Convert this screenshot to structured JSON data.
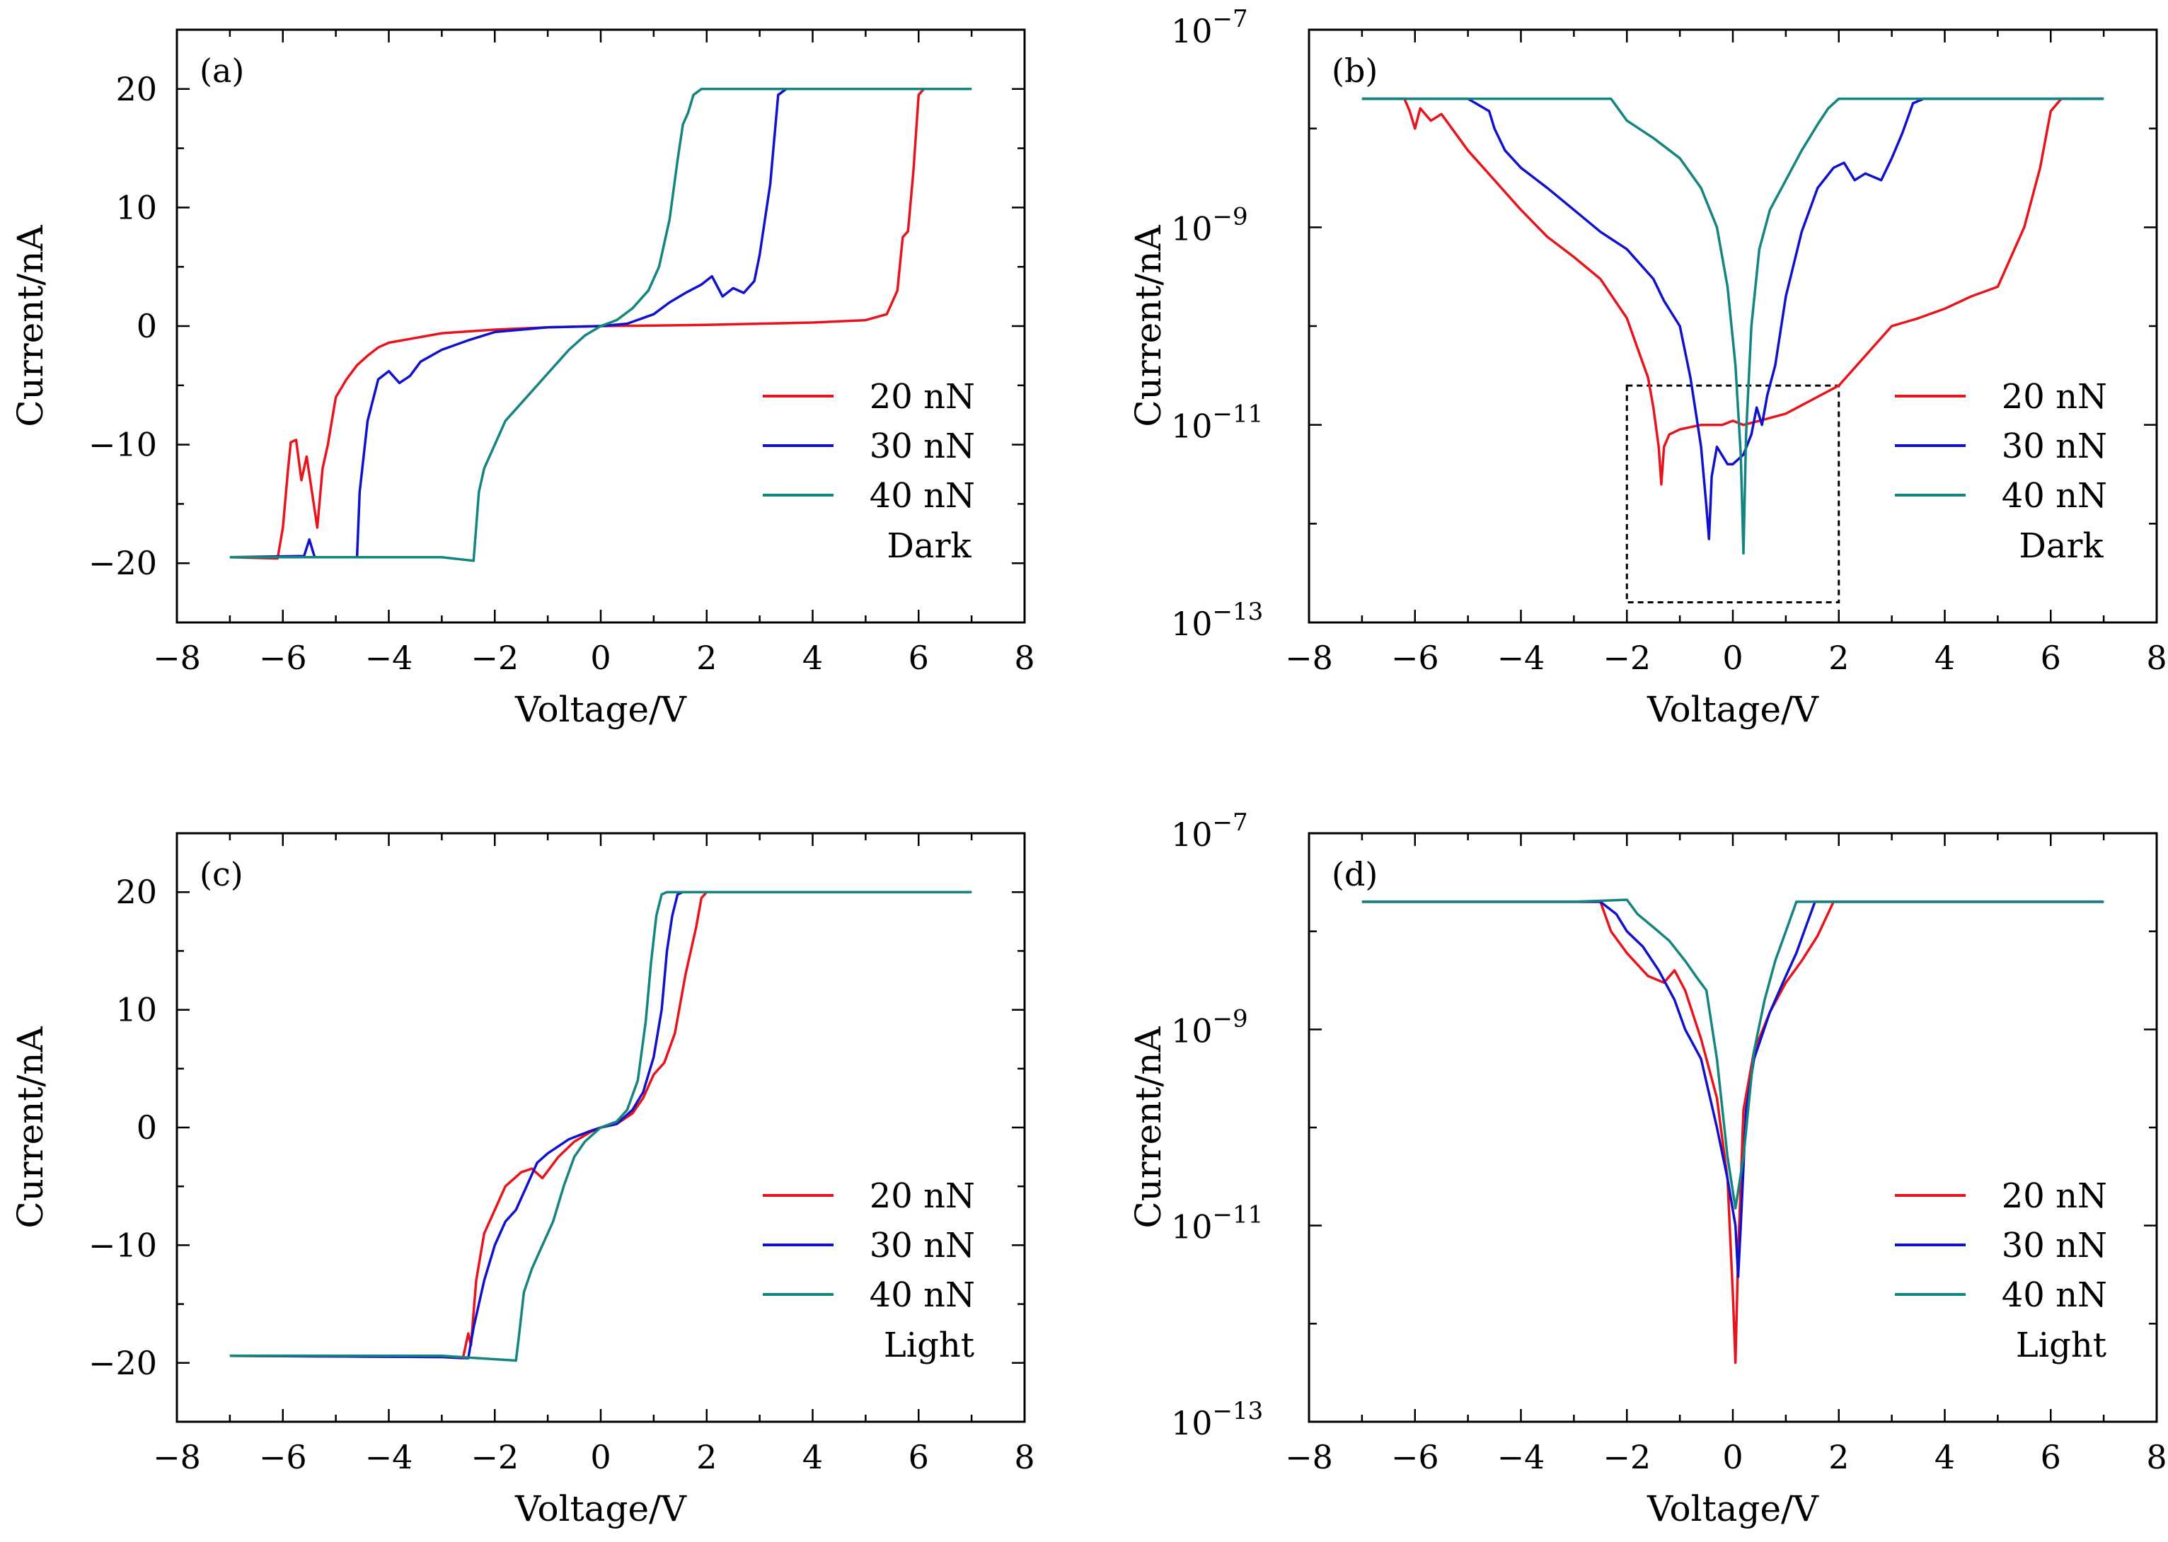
{
  "colors": {
    "20 nN": "#e8141c",
    "30 nN": "#1111cc",
    "40 nN": "#14857e"
  },
  "chart_data": [
    {
      "id": "a",
      "type": "line",
      "panel_label": "(a)",
      "xlabel": "Voltage/V",
      "ylabel": "Current/nA",
      "xlim": [
        -8,
        8
      ],
      "ylim": [
        -25,
        25
      ],
      "xticks": [
        -8,
        -6,
        -4,
        -2,
        0,
        2,
        4,
        6,
        8
      ],
      "xtick_labels": [
        "−8",
        "−6",
        "−4",
        "−2",
        "0",
        "2",
        "4",
        "6",
        "8"
      ],
      "yticks": [
        -20,
        -10,
        0,
        10,
        20
      ],
      "ytick_labels": [
        "−20",
        "−10",
        "0",
        "10",
        "20"
      ],
      "yscale": "linear",
      "legend_title": "Dark",
      "legend_position": "lower-right",
      "series": [
        {
          "name": "20 nN",
          "x": [
            -7.0,
            -6.1,
            -6.0,
            -5.9,
            -5.85,
            -5.75,
            -5.65,
            -5.55,
            -5.45,
            -5.35,
            -5.25,
            -5.15,
            -5.0,
            -4.8,
            -4.6,
            -4.4,
            -4.2,
            -4.0,
            -3.5,
            -3.0,
            -2.0,
            -1.0,
            0.0,
            1.0,
            2.0,
            3.0,
            4.0,
            5.0,
            5.4,
            5.6,
            5.7,
            5.8,
            5.9,
            6.0,
            6.1,
            6.2,
            7.0
          ],
          "y": [
            -19.5,
            -19.6,
            -17,
            -12,
            -9.8,
            -9.6,
            -13,
            -11,
            -14,
            -17,
            -12,
            -10,
            -6,
            -4.5,
            -3.3,
            -2.5,
            -1.8,
            -1.4,
            -1.0,
            -0.6,
            -0.3,
            -0.1,
            0.0,
            0.05,
            0.1,
            0.2,
            0.3,
            0.5,
            1.0,
            3.0,
            7.5,
            8.0,
            13,
            19.5,
            20,
            20,
            20
          ]
        },
        {
          "name": "30 nN",
          "x": [
            -7.0,
            -5.6,
            -5.5,
            -5.4,
            -4.6,
            -4.55,
            -4.4,
            -4.2,
            -4.0,
            -3.8,
            -3.6,
            -3.4,
            -3.0,
            -2.5,
            -2.0,
            -1.0,
            0.0,
            0.5,
            1.0,
            1.3,
            1.6,
            1.9,
            2.1,
            2.3,
            2.5,
            2.7,
            2.9,
            3.0,
            3.2,
            3.35,
            3.5,
            4.0,
            7.0
          ],
          "y": [
            -19.5,
            -19.4,
            -18,
            -19.5,
            -19.5,
            -14,
            -8,
            -4.5,
            -3.8,
            -4.8,
            -4.2,
            -3.0,
            -2.0,
            -1.2,
            -0.5,
            -0.1,
            0.0,
            0.2,
            1.0,
            2.0,
            2.8,
            3.5,
            4.2,
            2.5,
            3.2,
            2.8,
            3.8,
            6.0,
            12,
            19.5,
            20,
            20,
            20
          ]
        },
        {
          "name": "40 nN",
          "x": [
            -7.0,
            -3.0,
            -2.4,
            -2.3,
            -2.2,
            -2.0,
            -1.8,
            -1.6,
            -1.4,
            -1.0,
            -0.6,
            -0.3,
            0.0,
            0.3,
            0.6,
            0.9,
            1.1,
            1.3,
            1.45,
            1.55,
            1.65,
            1.75,
            1.9,
            2.0,
            2.5,
            7.0
          ],
          "y": [
            -19.5,
            -19.5,
            -19.8,
            -14,
            -12,
            -10,
            -8,
            -7,
            -6,
            -4,
            -2,
            -0.8,
            0.0,
            0.5,
            1.5,
            3.0,
            5.0,
            9.0,
            14,
            17,
            18,
            19.5,
            20,
            20,
            20,
            20
          ]
        }
      ]
    },
    {
      "id": "b",
      "type": "line",
      "panel_label": "(b)",
      "xlabel": "Voltage/V",
      "ylabel": "Current/nA",
      "xlim": [
        -8,
        8
      ],
      "ylim": [
        1e-13,
        1e-07
      ],
      "xticks": [
        -8,
        -6,
        -4,
        -2,
        0,
        2,
        4,
        6,
        8
      ],
      "xtick_labels": [
        "−8",
        "−6",
        "−4",
        "−2",
        "0",
        "2",
        "4",
        "6",
        "8"
      ],
      "yticks": [
        1e-13,
        1e-11,
        1e-09,
        1e-07
      ],
      "ytick_labels": [
        "10",
        "10",
        "10",
        "10"
      ],
      "ytick_exponents": [
        "−13",
        "−11",
        "−9",
        "−7"
      ],
      "yscale": "log",
      "legend_title": "Dark",
      "legend_position": "lower-right",
      "inset_box": {
        "x": [
          -2,
          2
        ],
        "y": [
          1.6e-13,
          2.5e-11
        ]
      },
      "series": [
        {
          "name": "20 nN",
          "x": [
            -7.0,
            -6.2,
            -6.1,
            -6.0,
            -5.9,
            -5.7,
            -5.5,
            -5.0,
            -4.5,
            -4.0,
            -3.5,
            -3.0,
            -2.5,
            -2.0,
            -1.8,
            -1.6,
            -1.5,
            -1.4,
            -1.35,
            -1.3,
            -1.2,
            -1.0,
            -0.6,
            -0.2,
            0.0,
            0.2,
            0.5,
            1.0,
            1.5,
            2.0,
            2.5,
            3.0,
            3.5,
            4.0,
            4.5,
            5.0,
            5.5,
            5.8,
            6.0,
            6.2,
            7.0
          ],
          "y": [
            2e-08,
            2e-08,
            1.5e-08,
            1e-08,
            1.6e-08,
            1.2e-08,
            1.4e-08,
            6e-09,
            3e-09,
            1.5e-09,
            8e-10,
            5e-10,
            3e-10,
            1.2e-10,
            6e-11,
            3e-11,
            1.5e-11,
            6e-12,
            2.5e-12,
            6e-12,
            8e-12,
            9e-12,
            1e-11,
            1e-11,
            1.1e-11,
            1e-11,
            1.1e-11,
            1.3e-11,
            1.8e-11,
            2.5e-11,
            5e-11,
            1e-10,
            1.2e-10,
            1.5e-10,
            2e-10,
            2.5e-10,
            1e-09,
            4e-09,
            1.5e-08,
            2e-08,
            2e-08
          ]
        },
        {
          "name": "30 nN",
          "x": [
            -7.0,
            -5.0,
            -4.6,
            -4.5,
            -4.3,
            -4.0,
            -3.5,
            -3.0,
            -2.5,
            -2.0,
            -1.5,
            -1.3,
            -1.0,
            -0.8,
            -0.6,
            -0.5,
            -0.45,
            -0.4,
            -0.3,
            -0.1,
            0.0,
            0.2,
            0.35,
            0.45,
            0.55,
            0.65,
            0.8,
            1.0,
            1.3,
            1.6,
            1.9,
            2.1,
            2.3,
            2.5,
            2.8,
            3.0,
            3.2,
            3.4,
            3.6,
            7.0
          ],
          "y": [
            2e-08,
            2e-08,
            1.5e-08,
            1e-08,
            6e-09,
            4e-09,
            2.5e-09,
            1.5e-09,
            9e-10,
            6e-10,
            3e-10,
            1.8e-10,
            1e-10,
            3e-11,
            6e-12,
            1.5e-12,
            7e-13,
            3e-12,
            6e-12,
            4e-12,
            4e-12,
            5e-12,
            8e-12,
            1.5e-11,
            1e-11,
            2e-11,
            4e-11,
            2e-10,
            9e-10,
            2.5e-09,
            4e-09,
            4.5e-09,
            3e-09,
            3.5e-09,
            3e-09,
            5e-09,
            9e-09,
            1.8e-08,
            2e-08,
            2e-08
          ]
        },
        {
          "name": "40 nN",
          "x": [
            -7.0,
            -3.0,
            -2.3,
            -2.0,
            -1.5,
            -1.0,
            -0.6,
            -0.3,
            -0.1,
            0.05,
            0.15,
            0.2,
            0.25,
            0.35,
            0.5,
            0.7,
            1.0,
            1.3,
            1.6,
            1.8,
            2.0,
            2.2,
            7.0
          ],
          "y": [
            2e-08,
            2e-08,
            2e-08,
            1.2e-08,
            8e-09,
            5e-09,
            2.5e-09,
            1e-09,
            2.5e-10,
            4e-11,
            5e-12,
            5e-13,
            8e-12,
            1e-10,
            6e-10,
            1.5e-09,
            3e-09,
            6e-09,
            1.1e-08,
            1.6e-08,
            2e-08,
            2e-08,
            2e-08
          ]
        }
      ]
    },
    {
      "id": "c",
      "type": "line",
      "panel_label": "(c)",
      "xlabel": "Voltage/V",
      "ylabel": "Current/nA",
      "xlim": [
        -8,
        8
      ],
      "ylim": [
        -25,
        25
      ],
      "xticks": [
        -8,
        -6,
        -4,
        -2,
        0,
        2,
        4,
        6,
        8
      ],
      "xtick_labels": [
        "−8",
        "−6",
        "−4",
        "−2",
        "0",
        "2",
        "4",
        "6",
        "8"
      ],
      "yticks": [
        -20,
        -10,
        0,
        10,
        20
      ],
      "ytick_labels": [
        "−20",
        "−10",
        "0",
        "10",
        "20"
      ],
      "yscale": "linear",
      "legend_title": "Light",
      "legend_position": "lower-right",
      "series": [
        {
          "name": "20 nN",
          "x": [
            -7.0,
            -3.0,
            -2.6,
            -2.5,
            -2.45,
            -2.35,
            -2.2,
            -2.0,
            -1.8,
            -1.5,
            -1.3,
            -1.1,
            -0.8,
            -0.5,
            -0.2,
            0.0,
            0.3,
            0.6,
            0.8,
            1.0,
            1.2,
            1.4,
            1.6,
            1.8,
            1.9,
            2.0,
            7.0
          ],
          "y": [
            -19.4,
            -19.5,
            -19.6,
            -17.5,
            -18.5,
            -13,
            -9,
            -7,
            -5,
            -3.8,
            -3.5,
            -4.3,
            -2.5,
            -1.2,
            -0.4,
            0.0,
            0.3,
            1.2,
            2.5,
            4.5,
            5.5,
            8.0,
            13,
            17,
            19.5,
            20,
            20
          ]
        },
        {
          "name": "30 nN",
          "x": [
            -7.0,
            -3.0,
            -2.5,
            -2.4,
            -2.2,
            -2.0,
            -1.8,
            -1.6,
            -1.4,
            -1.2,
            -1.0,
            -0.6,
            -0.2,
            0.0,
            0.3,
            0.6,
            0.8,
            1.0,
            1.15,
            1.25,
            1.35,
            1.45,
            1.55,
            7.0
          ],
          "y": [
            -19.4,
            -19.5,
            -19.6,
            -17,
            -13,
            -10,
            -8,
            -7,
            -5,
            -3.0,
            -2.2,
            -1.0,
            -0.3,
            0.0,
            0.3,
            1.5,
            3.0,
            6.0,
            10,
            15,
            18,
            19.8,
            20,
            20
          ]
        },
        {
          "name": "40 nN",
          "x": [
            -7.0,
            -3.0,
            -1.6,
            -1.55,
            -1.45,
            -1.3,
            -1.1,
            -0.9,
            -0.7,
            -0.5,
            -0.3,
            0.0,
            0.3,
            0.5,
            0.7,
            0.85,
            0.95,
            1.05,
            1.15,
            1.25,
            7.0
          ],
          "y": [
            -19.4,
            -19.4,
            -19.8,
            -18,
            -14,
            -12,
            -10,
            -8,
            -5,
            -2.5,
            -1.2,
            0.0,
            0.5,
            1.5,
            4.0,
            9.0,
            14,
            18,
            19.8,
            20,
            20
          ]
        }
      ]
    },
    {
      "id": "d",
      "type": "line",
      "panel_label": "(d)",
      "xlabel": "Voltage/V",
      "ylabel": "Current/nA",
      "xlim": [
        -8,
        8
      ],
      "ylim": [
        1e-13,
        1e-07
      ],
      "xticks": [
        -8,
        -6,
        -4,
        -2,
        0,
        2,
        4,
        6,
        8
      ],
      "xtick_labels": [
        "−8",
        "−6",
        "−4",
        "−2",
        "0",
        "2",
        "4",
        "6",
        "8"
      ],
      "yticks": [
        1e-13,
        1e-11,
        1e-09,
        1e-07
      ],
      "ytick_labels": [
        "10",
        "10",
        "10",
        "10"
      ],
      "ytick_exponents": [
        "−13",
        "−11",
        "−9",
        "−7"
      ],
      "yscale": "log",
      "legend_title": "Light",
      "legend_position": "lower-right",
      "series": [
        {
          "name": "20 nN",
          "x": [
            -7.0,
            -3.0,
            -2.5,
            -2.3,
            -2.0,
            -1.6,
            -1.3,
            -1.1,
            -0.9,
            -0.6,
            -0.3,
            -0.1,
            0.0,
            0.05,
            0.1,
            0.2,
            0.4,
            0.7,
            1.0,
            1.3,
            1.6,
            1.9,
            7.0
          ],
          "y": [
            2e-08,
            2e-08,
            2e-08,
            1e-08,
            6e-09,
            3.5e-09,
            3e-09,
            4e-09,
            2.5e-09,
            8e-10,
            2e-10,
            3e-11,
            2e-12,
            4e-13,
            5e-12,
            1.5e-10,
            6e-10,
            1.5e-09,
            3e-09,
            5e-09,
            9e-09,
            2e-08,
            2e-08
          ]
        },
        {
          "name": "30 nN",
          "x": [
            -7.0,
            -3.0,
            -2.5,
            -2.2,
            -2.0,
            -1.7,
            -1.4,
            -1.1,
            -0.9,
            -0.6,
            -0.3,
            -0.1,
            0.05,
            0.1,
            0.15,
            0.25,
            0.4,
            0.7,
            1.0,
            1.2,
            1.4,
            1.55,
            7.0
          ],
          "y": [
            2e-08,
            2e-08,
            2e-08,
            1.5e-08,
            1e-08,
            7e-09,
            4e-09,
            2e-09,
            1e-09,
            5e-10,
            1e-10,
            3e-11,
            1e-11,
            3e-12,
            1e-11,
            1.5e-10,
            5e-10,
            1.5e-09,
            3.5e-09,
            6e-09,
            1.2e-08,
            2e-08,
            2e-08
          ]
        },
        {
          "name": "40 nN",
          "x": [
            -7.0,
            -3.0,
            -2.0,
            -1.8,
            -1.5,
            -1.2,
            -0.9,
            -0.7,
            -0.5,
            -0.3,
            -0.1,
            0.05,
            0.2,
            0.4,
            0.6,
            0.8,
            1.0,
            1.2,
            7.0
          ],
          "y": [
            2e-08,
            2e-08,
            2.1e-08,
            1.5e-08,
            1.1e-08,
            8e-09,
            5e-09,
            3.5e-09,
            2.5e-09,
            5e-10,
            5e-11,
            1.5e-11,
            5e-11,
            6e-10,
            2e-09,
            5e-09,
            1e-08,
            2e-08,
            2e-08
          ]
        }
      ]
    }
  ]
}
